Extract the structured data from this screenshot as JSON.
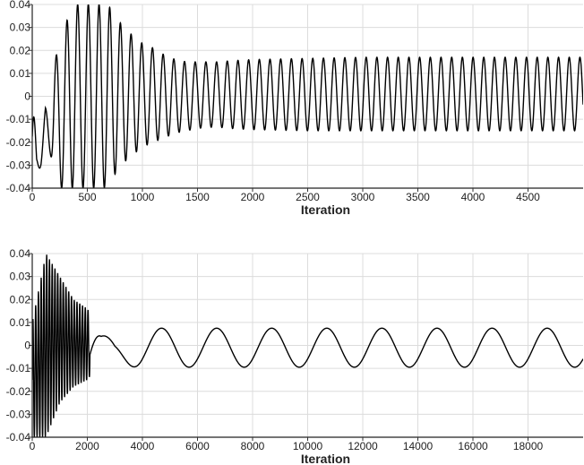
{
  "chart_data": [
    {
      "type": "line",
      "xlabel": "Iteration",
      "ylabel": "",
      "xlim": [
        0,
        5000
      ],
      "ylim": [
        -0.04,
        0.04
      ],
      "grid": true,
      "xticks": [
        0,
        500,
        1000,
        1500,
        2000,
        2500,
        3000,
        3500,
        4000,
        4500
      ],
      "yticks": [
        -0.04,
        -0.03,
        -0.02,
        -0.01,
        0,
        0.01,
        0.02,
        0.03,
        0.04
      ],
      "ytick_labels": [
        "-0.04",
        "-0.03",
        "-0.02",
        "-0.01",
        "0",
        "0.01",
        "0.02",
        "0.03",
        "0.04"
      ],
      "series": [
        {
          "color": "#000000",
          "x": [
            0,
            40,
            80,
            120,
            160,
            200,
            250,
            300,
            350,
            400,
            450,
            500,
            550,
            600,
            650,
            700,
            750,
            800,
            850,
            900,
            950,
            1000,
            1100,
            1200,
            1300,
            1400,
            1500,
            1600,
            1700,
            1800,
            2000,
            2500,
            3000,
            3500,
            4000,
            4500,
            5000
          ],
          "y_max": [
            0.005,
            -0.025,
            -0.02,
            -0.005,
            -0.01,
            0.015,
            0.023,
            0.03,
            0.04,
            0.04,
            0.04,
            0.04,
            0.04,
            0.04,
            0.04,
            0.039,
            0.035,
            0.032,
            0.029,
            0.027,
            0.025,
            0.023,
            0.021,
            0.018,
            0.016,
            0.015,
            0.015,
            0.015,
            0.015,
            0.0155,
            0.016,
            0.0165,
            0.017,
            0.017,
            0.017,
            0.017,
            0.017
          ],
          "y_min": [
            -0.04,
            -0.035,
            -0.03,
            -0.02,
            -0.025,
            -0.03,
            -0.04,
            -0.04,
            -0.04,
            -0.04,
            -0.04,
            -0.04,
            -0.04,
            -0.04,
            -0.04,
            -0.038,
            -0.034,
            -0.031,
            -0.028,
            -0.026,
            -0.024,
            -0.022,
            -0.02,
            -0.018,
            -0.016,
            -0.015,
            -0.014,
            -0.0135,
            -0.0135,
            -0.014,
            -0.0145,
            -0.015,
            -0.015,
            -0.015,
            -0.015,
            -0.015,
            -0.015
          ],
          "approx_period": 97
        }
      ]
    },
    {
      "type": "line",
      "xlabel": "Iteration",
      "ylabel": "",
      "xlim": [
        0,
        20000
      ],
      "ylim": [
        -0.04,
        0.04
      ],
      "grid": true,
      "xticks": [
        0,
        2000,
        4000,
        6000,
        8000,
        10000,
        12000,
        14000,
        16000,
        18000
      ],
      "yticks": [
        -0.04,
        -0.03,
        -0.02,
        -0.01,
        0,
        0.01,
        0.02,
        0.03,
        0.04
      ],
      "ytick_labels": [
        "-0.04",
        "-0.03",
        "-0.02",
        "-0.01",
        "0",
        "0.01",
        "0.02",
        "0.03",
        "0.04"
      ],
      "series": [
        {
          "color": "#000000",
          "x": [
            0,
            500,
            1000,
            1500,
            2000,
            2500,
            3000,
            4000,
            5000,
            6000,
            7000,
            8000,
            9000,
            10000,
            11000,
            12000,
            13000,
            14000,
            15000,
            16000,
            17000,
            18000,
            19000,
            20000
          ],
          "y_max": [
            0.01,
            0.04,
            0.03,
            0.02,
            0.016,
            0.005,
            0.002,
            0.0075,
            0.0075,
            0.0075,
            0.0075,
            0.0075,
            0.0075,
            0.0075,
            0.0075,
            0.0075,
            0.0075,
            0.0075,
            0.0075,
            0.0075,
            0.0075,
            0.0075,
            0.0075,
            0.0075
          ],
          "y_min": [
            -0.04,
            -0.04,
            -0.025,
            -0.018,
            -0.015,
            -0.007,
            -0.009,
            -0.0095,
            -0.0095,
            -0.0095,
            -0.0095,
            -0.0095,
            -0.0095,
            -0.0095,
            -0.0095,
            -0.0095,
            -0.0095,
            -0.0095,
            -0.0095,
            -0.0095,
            -0.0095,
            -0.0095,
            -0.0095,
            -0.0095
          ],
          "approx_period_early": 100,
          "approx_period_late": 2000
        }
      ]
    }
  ]
}
